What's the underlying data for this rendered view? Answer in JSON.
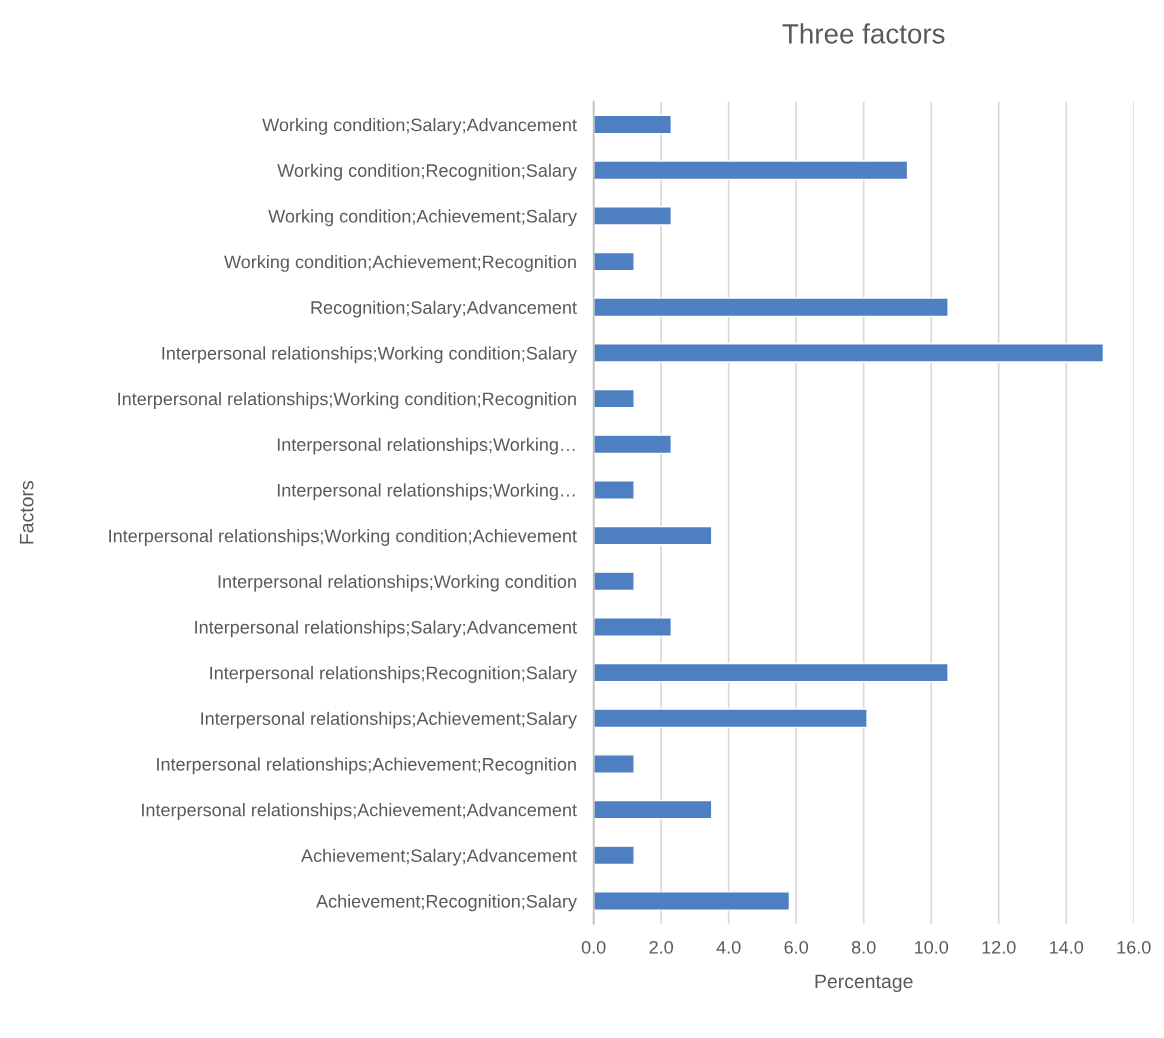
{
  "chart_data": {
    "type": "bar",
    "orientation": "horizontal",
    "title": "Three factors",
    "xlabel": "Percentage",
    "ylabel": "Factors",
    "categories": [
      "Working condition;Salary;Advancement",
      "Working condition;Recognition;Salary",
      "Working condition;Achievement;Salary",
      "Working condition;Achievement;Recognition",
      "Recognition;Salary;Advancement",
      "Interpersonal relationships;Working condition;Salary",
      "Interpersonal relationships;Working condition;Recognition",
      "Interpersonal relationships;Working…",
      "Interpersonal relationships;Working…",
      "Interpersonal relationships;Working condition;Achievement",
      "Interpersonal relationships;Working condition",
      "Interpersonal relationships;Salary;Advancement",
      "Interpersonal relationships;Recognition;Salary",
      "Interpersonal relationships;Achievement;Salary",
      "Interpersonal relationships;Achievement;Recognition",
      "Interpersonal relationships;Achievement;Advancement",
      "Achievement;Salary;Advancement",
      "Achievement;Recognition;Salary"
    ],
    "values": [
      2.3,
      9.3,
      2.3,
      1.2,
      10.5,
      15.1,
      1.2,
      2.3,
      1.2,
      3.5,
      1.2,
      2.3,
      10.5,
      8.1,
      1.2,
      3.5,
      1.2,
      5.8
    ],
    "color": "#4e7fc0",
    "xlim": [
      0,
      16
    ],
    "xticks": [
      {
        "value": 0,
        "label": "0.0"
      },
      {
        "value": 2,
        "label": "2.0"
      },
      {
        "value": 4,
        "label": "4.0"
      },
      {
        "value": 6,
        "label": "6.0"
      },
      {
        "value": 8,
        "label": "8.0"
      },
      {
        "value": 10,
        "label": "10.0"
      },
      {
        "value": 12,
        "label": "12.0"
      },
      {
        "value": 14,
        "label": "14.0"
      },
      {
        "value": 16,
        "label": "16.0"
      }
    ],
    "grid": "x"
  }
}
